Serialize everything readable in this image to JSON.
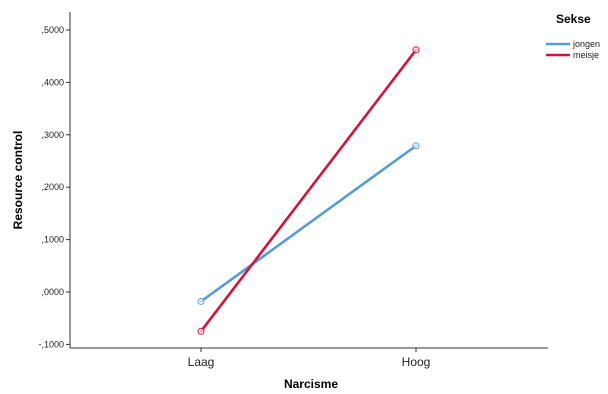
{
  "chart_data": {
    "type": "line",
    "xlabel": "Narcisme",
    "ylabel": "Resource control",
    "categories": [
      "Laag",
      "Hoog"
    ],
    "ylim": [
      -0.1,
      0.5
    ],
    "yticks": [
      -0.1,
      0.0,
      0.1,
      0.2,
      0.3,
      0.4,
      0.5
    ],
    "ytick_labels": [
      "-,1000",
      ",0000",
      ",1000",
      ",2000",
      ",3000",
      ",4000",
      ",5000"
    ],
    "grid": false,
    "legend": {
      "title": "Sekse",
      "placement": "top-right"
    },
    "series": [
      {
        "name": "jongen",
        "color": "#5b9bd5",
        "values": [
          -0.018,
          0.279
        ]
      },
      {
        "name": "meisje",
        "color": "#d1143b",
        "values": [
          -0.075,
          0.462
        ]
      }
    ]
  }
}
